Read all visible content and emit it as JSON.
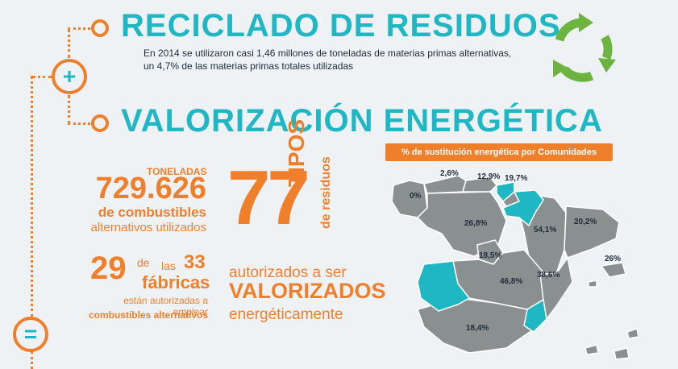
{
  "header": {
    "title_reciclado": "RECICLADO DE RESIDUOS",
    "description": "En 2014 se utilizaron casi 1,46 millones de toneladas de materias primas alternativas, un 4,7% de las materias primas totales utilizadas",
    "title_valorizacion": "VALORIZACIÓN ENERGÉTICA"
  },
  "stats": {
    "toneladas_label": "TONELADAS",
    "toneladas_value": "729.626",
    "combustibles_line": "de combustibles",
    "alternativos_line": "alternativos utilizados",
    "fabricas_num": "29",
    "de": "de",
    "las": "las",
    "total_fabricas": "33",
    "fabricas": "fábricas",
    "autorizadas_line1": "están autorizadas a emplear",
    "autorizadas_line2": "combustibles alternativos",
    "tipos_num": "77",
    "tipos": "TIPOS",
    "de_residuos": "de residuos",
    "autorizados": "autorizados a ser",
    "valorizados": "VALORIZADOS",
    "energeticamente": "energéticamente"
  },
  "map": {
    "title": "% de sustitución energética por Comunidades",
    "labels": [
      "0%",
      "2,6%",
      "12,9%",
      "19,7%",
      "26,8%",
      "54,1%",
      "20,2%",
      "18,5%",
      "46,8%",
      "38,6%",
      "26%",
      "18,4%"
    ]
  },
  "icons": {
    "recycle": "recycle-icon",
    "plus": "plus-icon",
    "equals": "equals-icon"
  },
  "colors": {
    "orange": "#f07f2c",
    "teal": "#1fb7c3",
    "green": "#6cb33f",
    "map_gray": "#8a8f90"
  }
}
